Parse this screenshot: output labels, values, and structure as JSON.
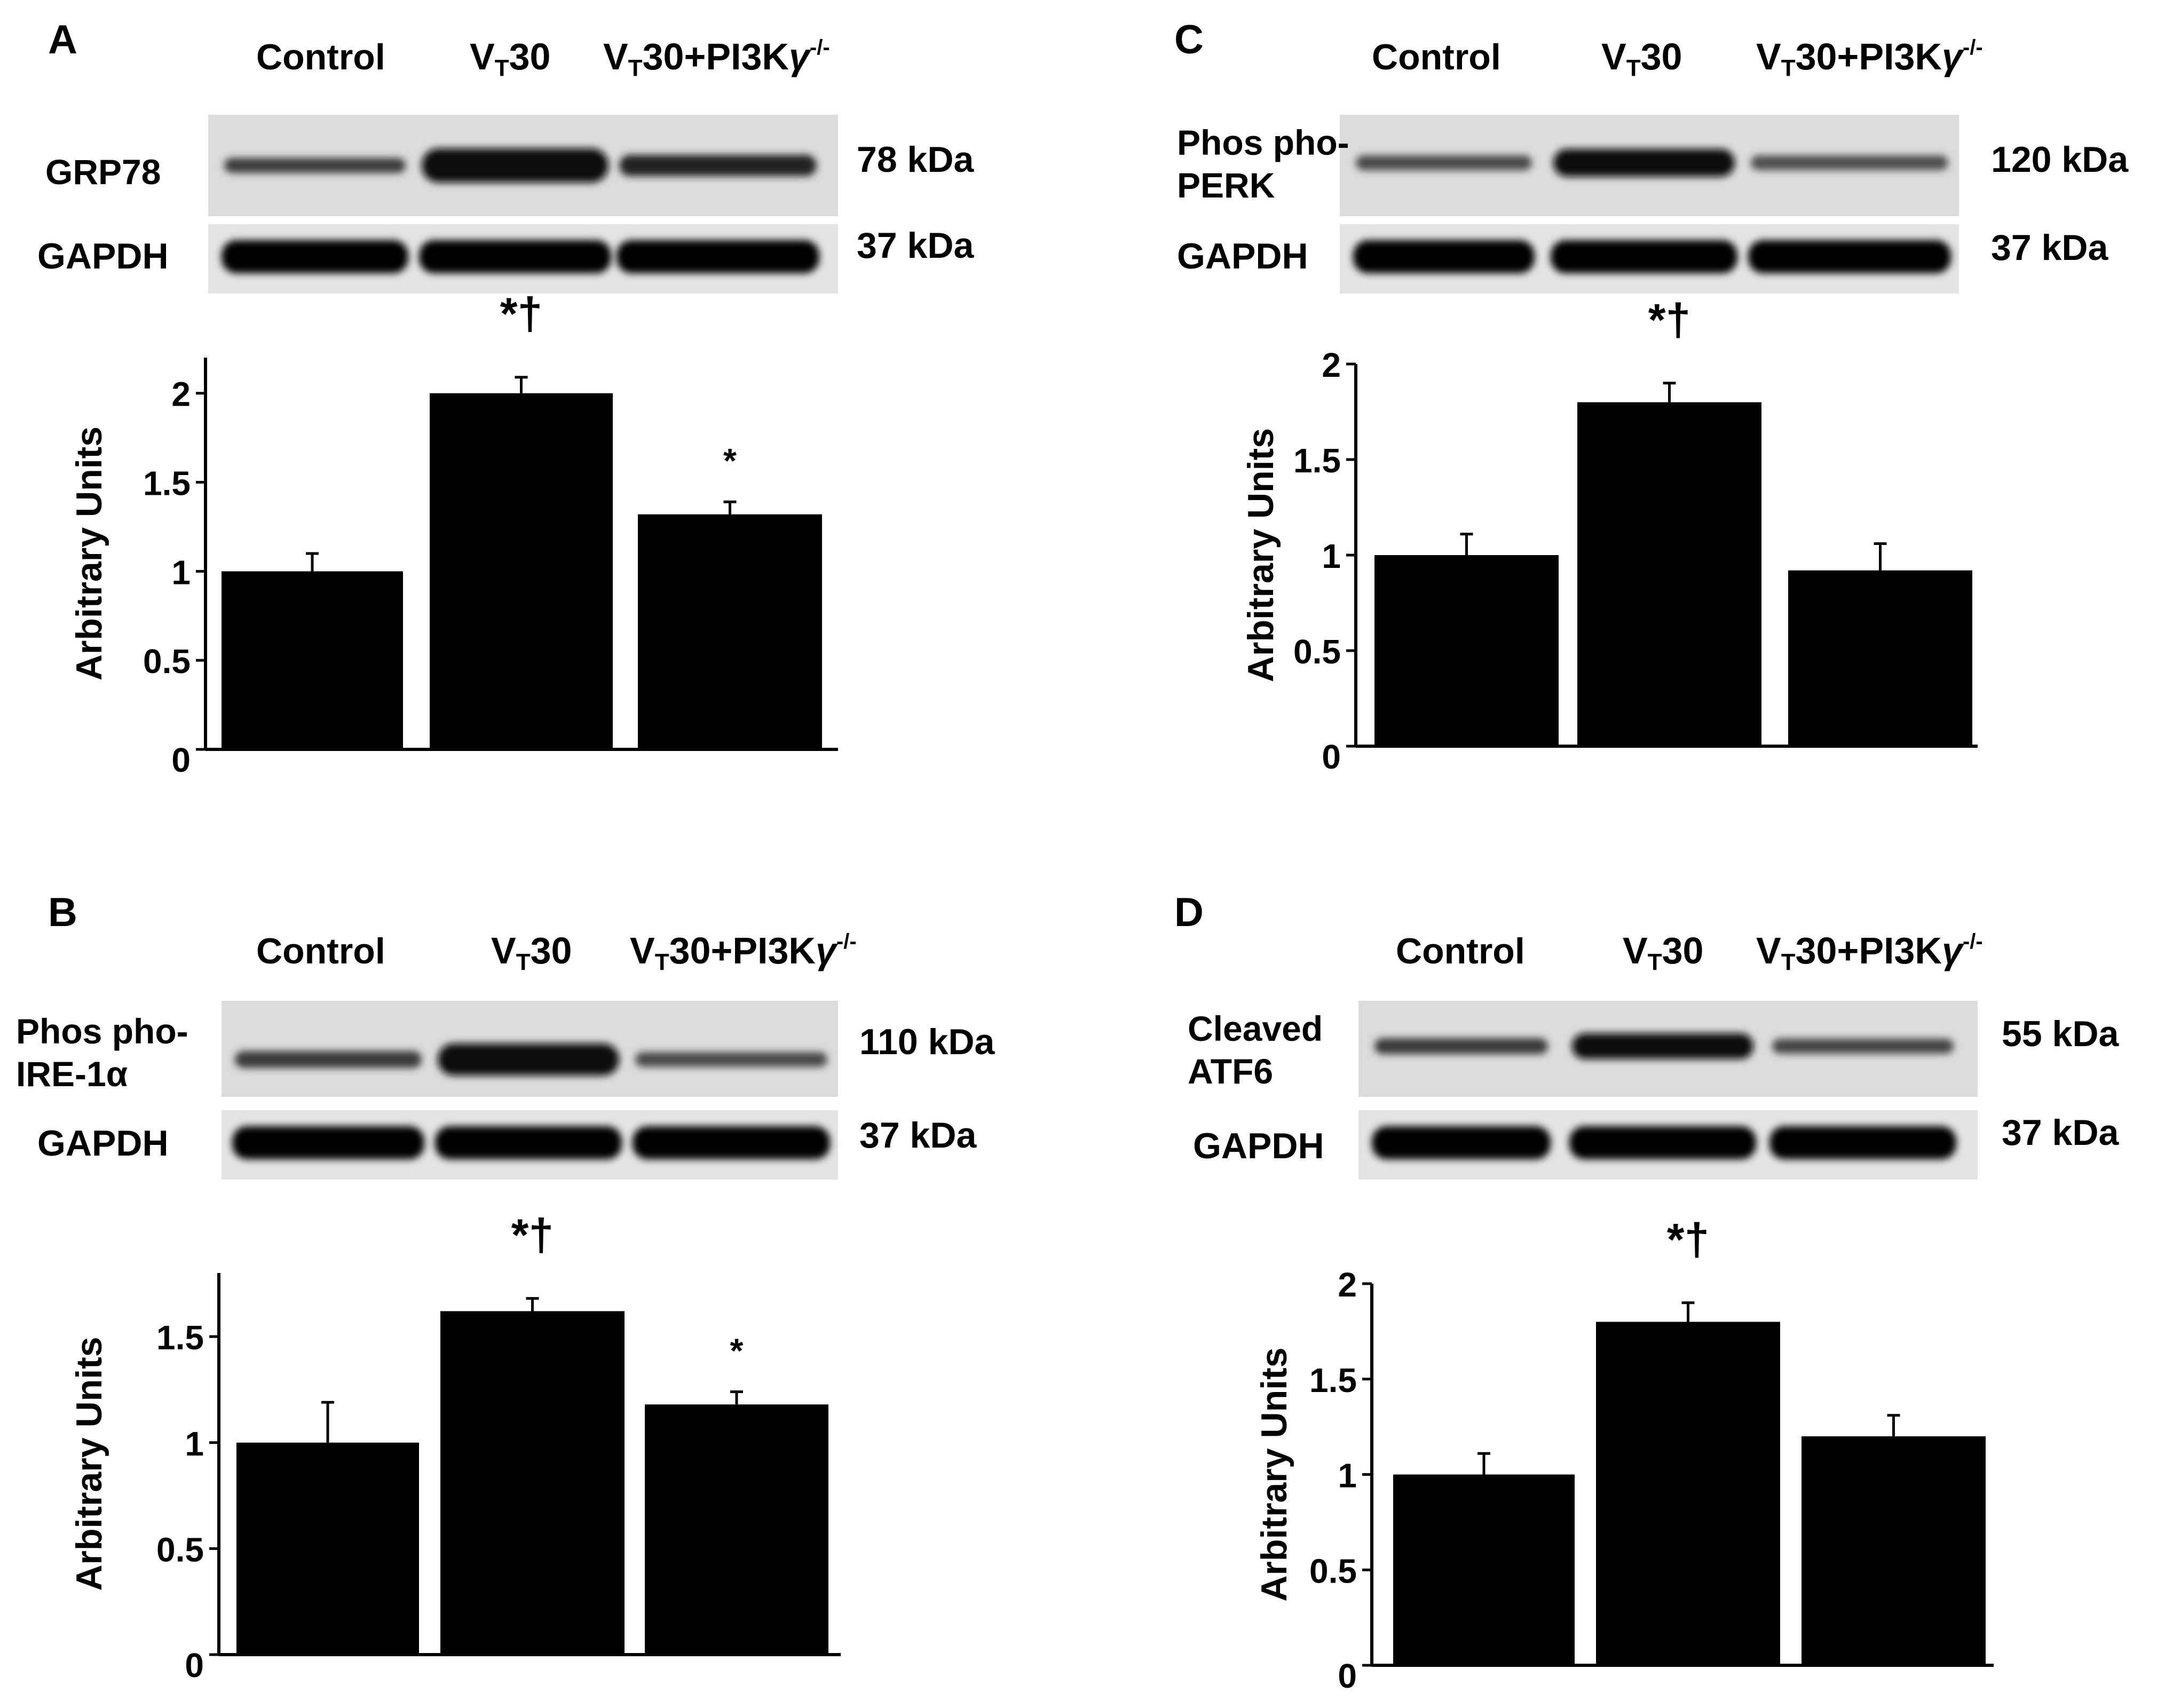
{
  "lane_labels": {
    "control": "Control",
    "vt30_main": "V",
    "vt30_sub": "T",
    "vt30_rest": "30",
    "combo_rest": "30+PI3K",
    "combo_gamma": "γ",
    "combo_sup": "-/-"
  },
  "loading_control": {
    "label": "GAPDH",
    "kda": "37 kDa"
  },
  "panels": {
    "A": {
      "letter": "A",
      "protein_lines": [
        "GRP78"
      ],
      "protein_kda": "78 kDa"
    },
    "B": {
      "letter": "B",
      "protein_lines": [
        "Phos pho-",
        "IRE-1α"
      ],
      "protein_kda": "110 kDa"
    },
    "C": {
      "letter": "C",
      "protein_lines": [
        "Phos pho-",
        "PERK"
      ],
      "protein_kda": "120 kDa"
    },
    "D": {
      "letter": "D",
      "protein_lines": [
        "Cleaved",
        "ATF6"
      ],
      "protein_kda": "55 kDa"
    }
  },
  "chart_data": [
    {
      "panel": "A",
      "type": "bar",
      "categories": [
        "Control",
        "VT30",
        "VT30+PI3Kγ-/-"
      ],
      "values": [
        1.0,
        2.0,
        1.32
      ],
      "errors": [
        0.1,
        0.09,
        0.07
      ],
      "markers": [
        "",
        "*†",
        "*"
      ],
      "ylabel": "Arbitrary Units",
      "ylim": [
        0,
        2.2
      ],
      "yticks": [
        0,
        0.5,
        1,
        1.5,
        2
      ],
      "yticklabels": [
        "0",
        "0.5",
        "1",
        "1.5",
        "2"
      ]
    },
    {
      "panel": "B",
      "type": "bar",
      "categories": [
        "Control",
        "VT30",
        "VT30+PI3Kγ-/-"
      ],
      "values": [
        1.0,
        1.62,
        1.18
      ],
      "errors": [
        0.19,
        0.06,
        0.06
      ],
      "markers": [
        "",
        "*†",
        "*"
      ],
      "ylabel": "Arbitrary Units",
      "ylim": [
        0,
        1.8
      ],
      "yticks": [
        0,
        0.5,
        1,
        1.5
      ],
      "yticklabels": [
        "0",
        "0.5",
        "1",
        "1.5"
      ]
    },
    {
      "panel": "C",
      "type": "bar",
      "categories": [
        "Control",
        "VT30",
        "VT30+PI3Kγ-/-"
      ],
      "values": [
        1.0,
        1.8,
        0.92
      ],
      "errors": [
        0.11,
        0.1,
        0.14
      ],
      "markers": [
        "",
        "*†",
        ""
      ],
      "ylabel": "Arbitrary Units",
      "ylim": [
        0,
        2.0
      ],
      "yticks": [
        0,
        0.5,
        1,
        1.5,
        2
      ],
      "yticklabels": [
        "0",
        "0.5",
        "1",
        "1.5",
        "2"
      ]
    },
    {
      "panel": "D",
      "type": "bar",
      "categories": [
        "Control",
        "VT30",
        "VT30+PI3Kγ-/-"
      ],
      "values": [
        1.0,
        1.8,
        1.2
      ],
      "errors": [
        0.11,
        0.1,
        0.11
      ],
      "markers": [
        "",
        "*†",
        ""
      ],
      "ylabel": "Arbitrary Units",
      "ylim": [
        0,
        2.0
      ],
      "yticks": [
        0,
        0.5,
        1,
        1.5,
        2
      ],
      "yticklabels": [
        "0",
        "0.5",
        "1",
        "1.5",
        "2"
      ]
    }
  ]
}
